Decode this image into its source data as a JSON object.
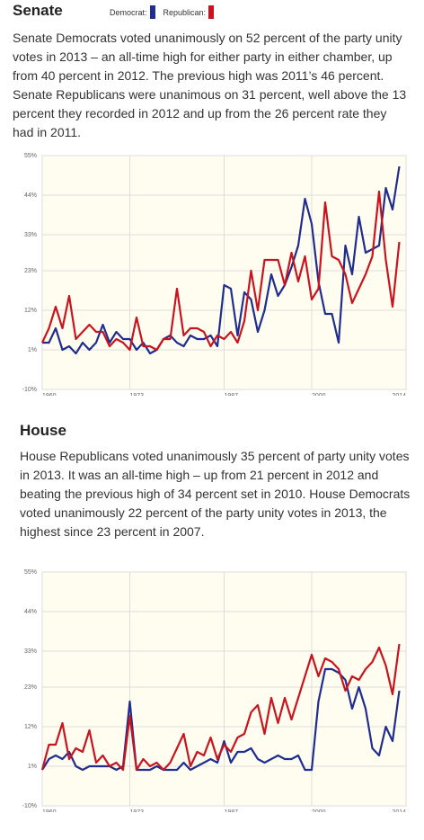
{
  "chart_data": [
    {
      "type": "line",
      "title": "Senate",
      "subtitle": "Senate Democrats voted unanimously on 52 percent of the party unity votes in 2013 – an all-time high for either party in either chamber, up from 40 percent in 2012. The previous high was 2011’s 46 percent. Senate Republicans were unanimous on 31 percent, well above the 13 percent they recorded in 2012 and up from the 26 percent rate they had in 2011.",
      "x": [
        1960,
        1961,
        1962,
        1963,
        1964,
        1965,
        1966,
        1967,
        1968,
        1969,
        1970,
        1971,
        1972,
        1973,
        1974,
        1975,
        1976,
        1977,
        1978,
        1979,
        1980,
        1981,
        1982,
        1983,
        1984,
        1985,
        1986,
        1987,
        1988,
        1989,
        1990,
        1991,
        1992,
        1993,
        1994,
        1995,
        1996,
        1997,
        1998,
        1999,
        2000,
        2001,
        2002,
        2003,
        2004,
        2005,
        2006,
        2007,
        2008,
        2009,
        2010,
        2011,
        2012,
        2013
      ],
      "series": [
        {
          "name": "Democrat:",
          "color": "#1f2d8f",
          "values": [
            3,
            3,
            7,
            1,
            2,
            0,
            3,
            1,
            3,
            8,
            3,
            6,
            4,
            4,
            1,
            3,
            0,
            1,
            4,
            5,
            3,
            2,
            5,
            4,
            4,
            5,
            2,
            19,
            18,
            5,
            17,
            15,
            6,
            12,
            22,
            16,
            19,
            24,
            30,
            43,
            36,
            20,
            11,
            11,
            3,
            30,
            22,
            38,
            28,
            29,
            30,
            46,
            40,
            52
          ]
        },
        {
          "name": "Republican:",
          "color": "#c8141e",
          "values": [
            3,
            7,
            13,
            7,
            16,
            4,
            6,
            8,
            6,
            6,
            2,
            4,
            3,
            1,
            10,
            2,
            2,
            1,
            4,
            4,
            18,
            5,
            7,
            7,
            6,
            2,
            5,
            4,
            6,
            3,
            9,
            23,
            12,
            26,
            26,
            26,
            19,
            28,
            20,
            27,
            15,
            18,
            42,
            27,
            26,
            22,
            14,
            18,
            22,
            27,
            45,
            26,
            13,
            31
          ]
        }
      ],
      "xlim": [
        1960,
        2014
      ],
      "xticks": [
        1960,
        1973,
        1987,
        2000,
        2014
      ],
      "ylim": [
        -10,
        55
      ],
      "yticks": [
        {
          "value": -10,
          "label": "-10%"
        },
        {
          "value": 1,
          "label": "1%"
        },
        {
          "value": 12,
          "label": "12%"
        },
        {
          "value": 23,
          "label": "23%"
        },
        {
          "value": 33,
          "label": "33%"
        },
        {
          "value": 44,
          "label": "44%"
        },
        {
          "value": 55,
          "label": "55%"
        }
      ],
      "grid": true
    },
    {
      "type": "line",
      "title": "House",
      "subtitle": "House Republicans voted unanimously 35 percent of party unity votes in 2013. It was an all-time high – up from 21 percent in 2012 and beating the previous high of 34 percent set in 2010. House Democrats voted unanimously 22 percent of the party unity votes in 2013, the highest since 23 percent in 2007.",
      "x": [
        1960,
        1961,
        1962,
        1963,
        1964,
        1965,
        1966,
        1967,
        1968,
        1969,
        1970,
        1971,
        1972,
        1973,
        1974,
        1975,
        1976,
        1977,
        1978,
        1979,
        1980,
        1981,
        1982,
        1983,
        1984,
        1985,
        1986,
        1987,
        1988,
        1989,
        1990,
        1991,
        1992,
        1993,
        1994,
        1995,
        1996,
        1997,
        1998,
        1999,
        2000,
        2001,
        2002,
        2003,
        2004,
        2005,
        2006,
        2007,
        2008,
        2009,
        2010,
        2011,
        2012,
        2013
      ],
      "series": [
        {
          "color": "#1f2d8f",
          "values": [
            0,
            3,
            4,
            3,
            5,
            1,
            0,
            1,
            1,
            1,
            1,
            0,
            1,
            19,
            0,
            0,
            0,
            1,
            0,
            0,
            0,
            2,
            0,
            1,
            2,
            3,
            2,
            8,
            2,
            5,
            5,
            6,
            3,
            2,
            3,
            4,
            3,
            3,
            4,
            0,
            0,
            19,
            28,
            28,
            27,
            25,
            17,
            23,
            17,
            6,
            4,
            12,
            8,
            22
          ]
        },
        {
          "color": "#c8141e",
          "values": [
            0,
            7,
            7,
            13,
            3,
            6,
            5,
            11,
            2,
            4,
            1,
            2,
            0,
            15,
            0,
            3,
            1,
            2,
            0,
            2,
            6,
            10,
            1,
            5,
            4,
            9,
            3,
            7,
            5,
            9,
            10,
            16,
            18,
            10,
            20,
            13,
            20,
            14,
            20,
            26,
            32,
            26,
            31,
            30,
            28,
            22,
            26,
            25,
            28,
            30,
            34,
            29,
            21,
            35
          ]
        }
      ],
      "xlim": [
        1960,
        2014
      ],
      "xticks": [
        1960,
        1973,
        1987,
        2000,
        2014
      ],
      "ylim": [
        -10,
        55
      ],
      "yticks": [
        {
          "value": -10,
          "label": "-10%"
        },
        {
          "value": 1,
          "label": "1%"
        },
        {
          "value": 12,
          "label": "12%"
        },
        {
          "value": 23,
          "label": "23%"
        },
        {
          "value": 33,
          "label": "33%"
        },
        {
          "value": 44,
          "label": "44%"
        },
        {
          "value": 55,
          "label": "55%"
        }
      ],
      "grid": true
    }
  ]
}
